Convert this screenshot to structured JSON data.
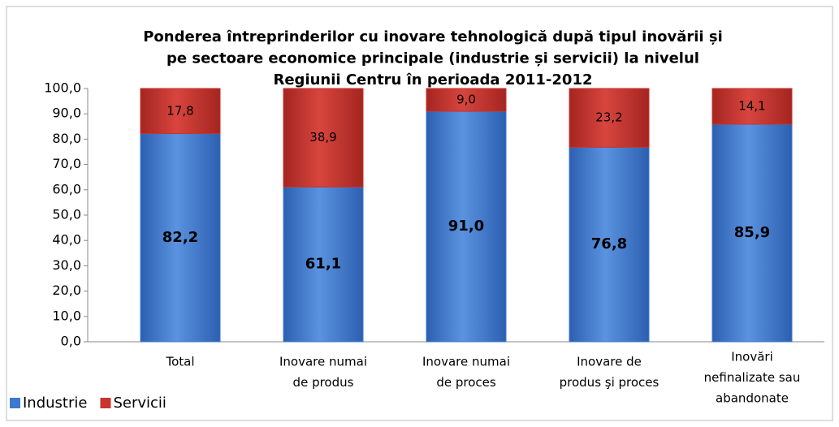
{
  "chart_data": {
    "type": "stacked_bar",
    "title": [
      "Ponderea  întreprinderilor cu inovare tehnologică după tipul inovării și",
      "pe sectoare economice principale (industrie și servicii) la nivelul",
      "Regiunii Centru în perioada 2011-2012"
    ],
    "categories": [
      [
        "Total"
      ],
      [
        "Inovare numai",
        "de produs"
      ],
      [
        "Inovare numai",
        "de proces"
      ],
      [
        "Inovare de",
        "produs şi proces"
      ],
      [
        "Inovări",
        "nefinalizate sau",
        "abandonate"
      ]
    ],
    "series": [
      {
        "name": "Industrie",
        "color": "#3f78cf",
        "values": [
          82.2,
          61.1,
          91.0,
          76.8,
          85.9
        ],
        "value_labels": [
          "82,2",
          "61,1",
          "91,0",
          "76,8",
          "85,9"
        ]
      },
      {
        "name": "Servicii",
        "color": "#c8342e",
        "values": [
          17.8,
          38.9,
          9.0,
          23.2,
          14.1
        ],
        "value_labels": [
          "17,8",
          "38,9",
          "9,0",
          "23,2",
          "14,1"
        ]
      }
    ],
    "ylim": [
      0,
      100
    ],
    "yticks": [
      {
        "value": 0,
        "label": "0,0"
      },
      {
        "value": 10,
        "label": "10,0"
      },
      {
        "value": 20,
        "label": "20,0"
      },
      {
        "value": 30,
        "label": "30,0"
      },
      {
        "value": 40,
        "label": "40,0"
      },
      {
        "value": 50,
        "label": "50,0"
      },
      {
        "value": 60,
        "label": "60,0"
      },
      {
        "value": 70,
        "label": "70,0"
      },
      {
        "value": 80,
        "label": "80,0"
      },
      {
        "value": 90,
        "label": "90,0"
      },
      {
        "value": 100,
        "label": "100,0"
      }
    ],
    "legend": "bottom-left"
  }
}
